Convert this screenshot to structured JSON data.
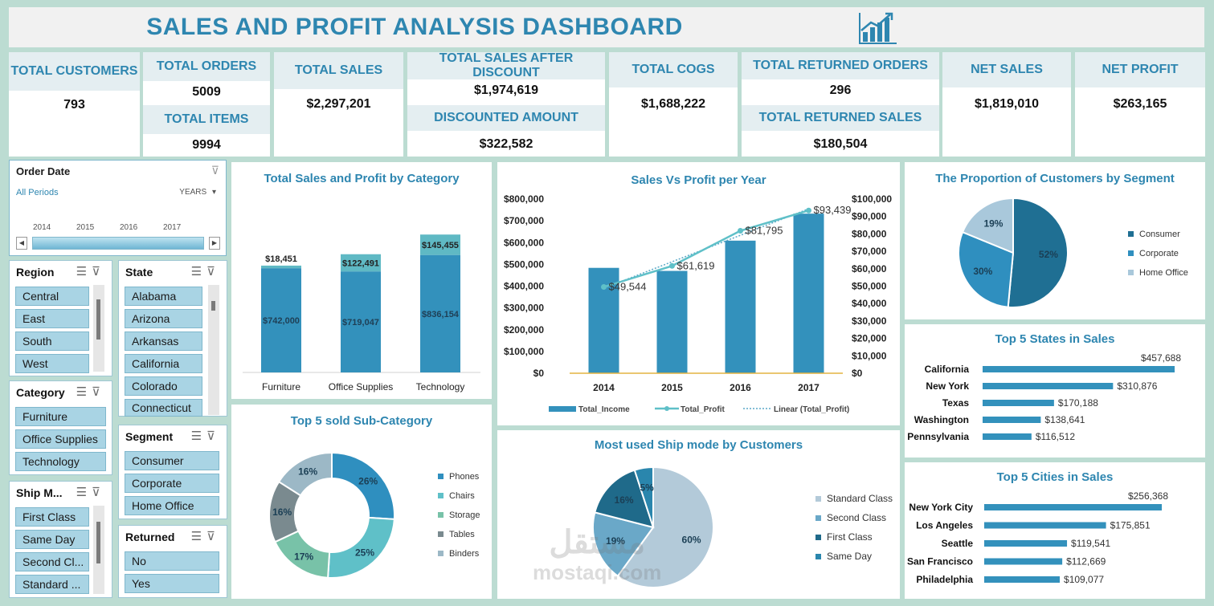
{
  "title": "SALES AND PROFIT ANALYSIS DASHBOARD",
  "title_icon": "growth-chart-icon",
  "kpis": {
    "total_customers": {
      "label": "TOTAL CUSTOMERS",
      "value": "793"
    },
    "total_orders": {
      "label": "TOTAL ORDERS",
      "value": "5009"
    },
    "total_items": {
      "label": "TOTAL ITEMS",
      "value": "9994"
    },
    "total_sales": {
      "label": "TOTAL SALES",
      "value": "$2,297,201"
    },
    "sales_after_discount": {
      "label": "TOTAL SALES AFTER DISCOUNT",
      "value": "$1,974,619"
    },
    "discounted_amount": {
      "label": "DISCOUNTED AMOUNT",
      "value": "$322,582"
    },
    "total_cogs": {
      "label": "TOTAL COGS",
      "value": "$1,688,222"
    },
    "returned_orders": {
      "label": "TOTAL RETURNED ORDERS",
      "value": "296"
    },
    "returned_sales": {
      "label": "TOTAL RETURNED SALES",
      "value": "$180,504"
    },
    "net_sales": {
      "label": "NET SALES",
      "value": "$1,819,010"
    },
    "net_profit": {
      "label": "NET PROFIT",
      "value": "$263,165"
    }
  },
  "timeline": {
    "title": "Order Date",
    "period": "All Periods",
    "level": "YEARS",
    "years": [
      "2014",
      "2015",
      "2016",
      "2017"
    ]
  },
  "slicers": {
    "region": {
      "title": "Region",
      "items": [
        "Central",
        "East",
        "South",
        "West"
      ]
    },
    "state": {
      "title": "State",
      "items": [
        "Alabama",
        "Arizona",
        "Arkansas",
        "California",
        "Colorado",
        "Connecticut"
      ]
    },
    "category": {
      "title": "Category",
      "items": [
        "Furniture",
        "Office Supplies",
        "Technology"
      ]
    },
    "segment": {
      "title": "Segment",
      "items": [
        "Consumer",
        "Corporate",
        "Home Office"
      ]
    },
    "ship_mode": {
      "title": "Ship M...",
      "items": [
        "First Class",
        "Same Day",
        "Second Cl...",
        "Standard ..."
      ]
    },
    "returned": {
      "title": "Returned",
      "items": [
        "No",
        "Yes"
      ]
    }
  },
  "colors": {
    "accent": "#2e86b0",
    "bar": "#3a93bd",
    "profit": "#5fc0c8",
    "header_bg": "#e4eef1",
    "slicer_item": "#a9d4e4"
  },
  "chart_data": [
    {
      "type": "bar",
      "title": "Total Sales and Profit by Category",
      "categories": [
        "Furniture",
        "Office Supplies",
        "Technology"
      ],
      "series": [
        {
          "values": [
            742000,
            719047,
            836154
          ],
          "labels": [
            "$742,000",
            "$719,047",
            "$836,154"
          ]
        },
        {
          "values": [
            18451,
            122491,
            145455
          ],
          "labels": [
            "$18,451",
            "$122,491",
            "$145,455"
          ]
        }
      ],
      "stacked": true
    },
    {
      "type": "bar",
      "title": "Sales Vs Profit per Year",
      "categories": [
        "2014",
        "2015",
        "2016",
        "2017"
      ],
      "y_ticks": [
        "$800,000",
        "$700,000",
        "$600,000",
        "$500,000",
        "$400,000",
        "$300,000",
        "$200,000",
        "$100,000",
        "$0"
      ],
      "y2_ticks": [
        "$100,000",
        "$90,000",
        "$80,000",
        "$70,000",
        "$60,000",
        "$50,000",
        "$40,000",
        "$30,000",
        "$20,000",
        "$10,000",
        "$0"
      ],
      "ylim": [
        0,
        800000
      ],
      "y2lim": [
        0,
        100000
      ],
      "series": [
        {
          "name": "Total_Income",
          "type": "bar",
          "values": [
            484000,
            470000,
            609000,
            733000
          ]
        },
        {
          "name": "Total_Profit",
          "type": "line",
          "values": [
            49544,
            61619,
            81795,
            93439
          ],
          "labels": [
            "$49,544",
            "$61,619",
            "$81,795",
            "$93,439"
          ]
        },
        {
          "name": "Linear (Total_Profit)",
          "type": "trendline"
        }
      ]
    },
    {
      "type": "pie",
      "title": "The Proportion of Customers by Segment",
      "categories": [
        "Consumer",
        "Corporate",
        "Home Office"
      ],
      "values": [
        52,
        30,
        19
      ],
      "labels": [
        "52%",
        "30%",
        "19%"
      ]
    },
    {
      "type": "bar",
      "orientation": "horizontal",
      "title": "Top 5 States in Sales",
      "categories": [
        "California",
        "New York",
        "Texas",
        "Washington",
        "Pennsylvania"
      ],
      "values": [
        457688,
        310876,
        170188,
        138641,
        116512
      ],
      "labels": [
        "$457,688",
        "$310,876",
        "$170,188",
        "$138,641",
        "$116,512"
      ]
    },
    {
      "type": "pie",
      "donut": true,
      "title": "Top 5 sold Sub-Category",
      "categories": [
        "Phones",
        "Chairs",
        "Storage",
        "Tables",
        "Binders"
      ],
      "values": [
        26,
        25,
        17,
        16,
        16
      ],
      "labels": [
        "26%",
        "25%",
        "17%",
        "16%",
        "16%"
      ]
    },
    {
      "type": "pie",
      "title": "Most used Ship mode by Customers",
      "categories": [
        "Standard Class",
        "Second Class",
        "First Class",
        "Same Day"
      ],
      "values": [
        60,
        19,
        16,
        5
      ],
      "labels": [
        "60%",
        "19%",
        "16%",
        "5%"
      ]
    },
    {
      "type": "bar",
      "orientation": "horizontal",
      "title": "Top 5 Cities in Sales",
      "categories": [
        "New York City",
        "Los Angeles",
        "Seattle",
        "San Francisco",
        "Philadelphia"
      ],
      "values": [
        256368,
        175851,
        119541,
        112669,
        109077
      ],
      "labels": [
        "$256,368",
        "$175,851",
        "$119,541",
        "$112,669",
        "$109,077"
      ]
    }
  ],
  "watermark": {
    "arabic": "مستقل",
    "latin": "mostaqi.com"
  }
}
